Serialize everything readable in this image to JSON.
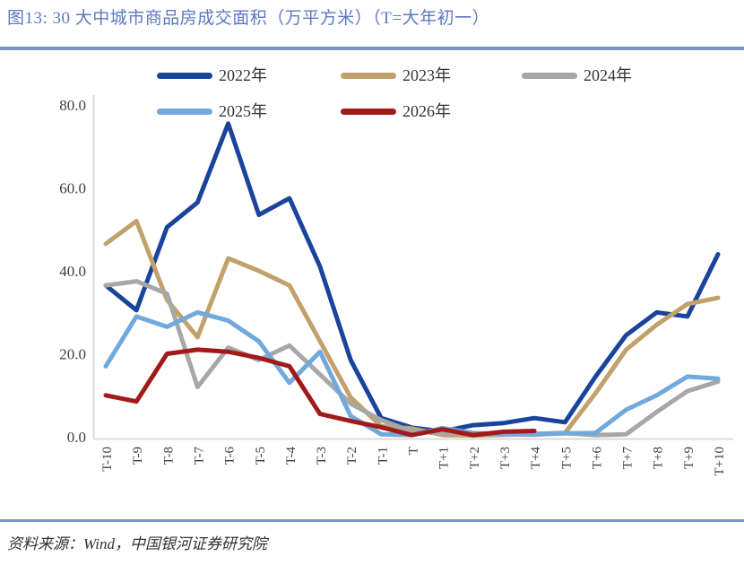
{
  "title": "图13: 30 大中城市商品房成交面积（万平方米）（T=大年初一）",
  "source": "资料来源：Wind，中国银河证券研究院",
  "chart_data": {
    "type": "line",
    "title": "30 大中城市商品房成交面积（万平方米）（T=大年初一）",
    "xlabel": "",
    "ylabel": "",
    "ylim": [
      0,
      80
    ],
    "yticks": [
      "0.0",
      "20.0",
      "40.0",
      "60.0",
      "80.0"
    ],
    "grid": false,
    "legend_position": "top",
    "categories": [
      "T-10",
      "T-9",
      "T-8",
      "T-7",
      "T-6",
      "T-5",
      "T-4",
      "T-3",
      "T-2",
      "T-1",
      "T",
      "T+1",
      "T+2",
      "T+3",
      "T+4",
      "T+5",
      "T+6",
      "T+7",
      "T+8",
      "T+9",
      "T+10"
    ],
    "series": [
      {
        "name": "2022年",
        "color": "#1a449b",
        "values": [
          36.5,
          30.5,
          50.5,
          56.5,
          75.5,
          53.5,
          57.5,
          41,
          18.5,
          4.5,
          2.2,
          1.3,
          2.8,
          3.3,
          4.5,
          3.5,
          14.5,
          24.5,
          30,
          29,
          44
        ]
      },
      {
        "name": "2023年",
        "color": "#c2a16c",
        "values": [
          46.5,
          52,
          33,
          24,
          43,
          40,
          36.5,
          23,
          9.5,
          2.5,
          2,
          0.4,
          0.3,
          0.5,
          0.7,
          0.9,
          10.5,
          21,
          27,
          32,
          33.5
        ]
      },
      {
        "name": "2024年",
        "color": "#a7a7a7",
        "values": [
          36.5,
          37.5,
          34.5,
          12,
          21.5,
          18.5,
          22,
          15,
          8,
          4,
          1.3,
          0.9,
          0.7,
          0.6,
          0.5,
          0.9,
          0.4,
          0.6,
          6,
          11,
          13.3
        ]
      },
      {
        "name": "2025年",
        "color": "#72a9dc",
        "values": [
          17,
          29,
          26.5,
          30,
          28,
          23,
          13,
          20.5,
          5,
          0.6,
          0.4,
          2.1,
          0.9,
          0.6,
          0.6,
          0.8,
          0.9,
          6.5,
          10,
          14.5,
          14
        ]
      },
      {
        "name": "2026年",
        "color": "#a11a1b",
        "values": [
          10,
          8.5,
          20,
          21,
          20.5,
          19,
          17,
          5.5,
          3.8,
          2.3,
          0.4,
          1.8,
          0.4,
          1.2,
          1.4
        ]
      }
    ]
  }
}
